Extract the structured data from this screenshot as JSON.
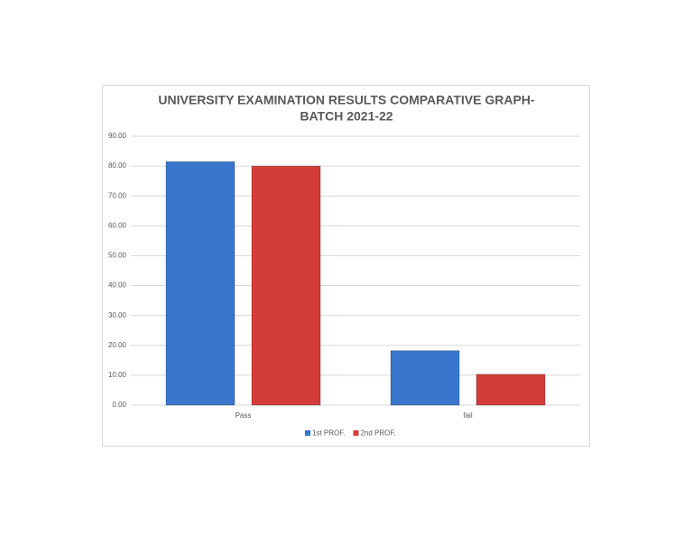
{
  "chart_data": {
    "type": "bar",
    "title": [
      "UNIVERSITY EXAMINATION RESULTS COMPARATIVE GRAPH-",
      "BATCH 2021-22"
    ],
    "categories": [
      "Pass",
      "fail"
    ],
    "series": [
      {
        "name": "1st PROF.",
        "color": "#3a77cc",
        "values": [
          81.5,
          18.2
        ]
      },
      {
        "name": "2nd PROF.",
        "color": "#d43c3a",
        "values": [
          80.0,
          10.3
        ]
      }
    ],
    "ylim": [
      0,
      90
    ],
    "yticks": [
      {
        "value": 0,
        "label": "0.00"
      },
      {
        "value": 10,
        "label": "10.00"
      },
      {
        "value": 20,
        "label": "20.00"
      },
      {
        "value": 30,
        "label": "30.00"
      },
      {
        "value": 40,
        "label": "40.00"
      },
      {
        "value": 50,
        "label": "50.00"
      },
      {
        "value": 60,
        "label": "60.00"
      },
      {
        "value": 70,
        "label": "70.00"
      },
      {
        "value": 80,
        "label": "80.00"
      },
      {
        "value": 90,
        "label": "90.00"
      }
    ],
    "grid": true,
    "legend": "bottom"
  }
}
